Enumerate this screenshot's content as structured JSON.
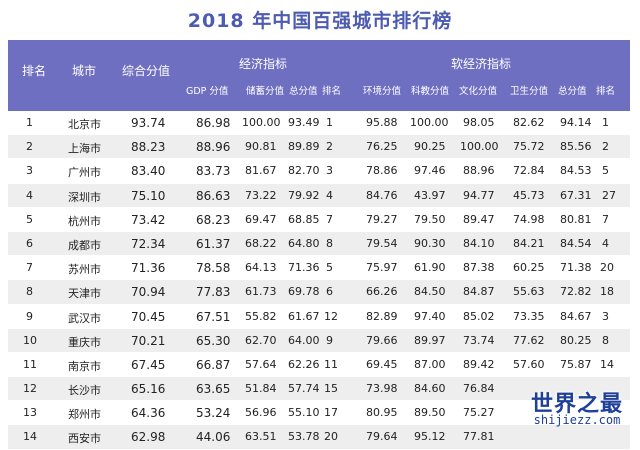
{
  "title": "2018 年中国百强城市排行榜",
  "header": {
    "rank": "排名",
    "city": "城市",
    "total": "综合分值",
    "economy_group": "经济指标",
    "non_economy_group": "软经济指标",
    "gdp": "GDP 分值",
    "savings": "储蓄分值",
    "econ_total": "总分值",
    "econ_rank": "排名",
    "environment": "环境分值",
    "science": "科教分值",
    "culture": "文化分值",
    "health": "卫生分值",
    "soft_total": "总分值",
    "soft_rank": "排名"
  },
  "rows": [
    {
      "rank": "1",
      "city": "北京市",
      "total": "93.74",
      "gdp": "86.98",
      "savings": "100.00",
      "econ_total": "93.49",
      "econ_rank": "1",
      "environment": "95.88",
      "science": "100.00",
      "culture": "98.05",
      "health": "82.62",
      "soft_total": "94.14",
      "soft_rank": "1"
    },
    {
      "rank": "2",
      "city": "上海市",
      "total": "88.23",
      "gdp": "88.96",
      "savings": "90.81",
      "econ_total": "89.89",
      "econ_rank": "2",
      "environment": "76.25",
      "science": "90.25",
      "culture": "100.00",
      "health": "75.72",
      "soft_total": "85.56",
      "soft_rank": "2"
    },
    {
      "rank": "3",
      "city": "广州市",
      "total": "83.40",
      "gdp": "83.73",
      "savings": "81.67",
      "econ_total": "82.70",
      "econ_rank": "3",
      "environment": "78.86",
      "science": "97.46",
      "culture": "88.96",
      "health": "72.84",
      "soft_total": "84.53",
      "soft_rank": "5"
    },
    {
      "rank": "4",
      "city": "深圳市",
      "total": "75.10",
      "gdp": "86.63",
      "savings": "73.22",
      "econ_total": "79.92",
      "econ_rank": "4",
      "environment": "84.76",
      "science": "43.97",
      "culture": "94.77",
      "health": "45.73",
      "soft_total": "67.31",
      "soft_rank": "27"
    },
    {
      "rank": "5",
      "city": "杭州市",
      "total": "73.42",
      "gdp": "68.23",
      "savings": "69.47",
      "econ_total": "68.85",
      "econ_rank": "7",
      "environment": "79.27",
      "science": "79.50",
      "culture": "89.47",
      "health": "74.98",
      "soft_total": "80.81",
      "soft_rank": "7"
    },
    {
      "rank": "6",
      "city": "成都市",
      "total": "72.34",
      "gdp": "61.37",
      "savings": "68.22",
      "econ_total": "64.80",
      "econ_rank": "8",
      "environment": "79.54",
      "science": "90.30",
      "culture": "84.10",
      "health": "84.21",
      "soft_total": "84.54",
      "soft_rank": "4"
    },
    {
      "rank": "7",
      "city": "苏州市",
      "total": "71.36",
      "gdp": "78.58",
      "savings": "64.13",
      "econ_total": "71.36",
      "econ_rank": "5",
      "environment": "75.97",
      "science": "61.90",
      "culture": "87.38",
      "health": "60.25",
      "soft_total": "71.38",
      "soft_rank": "20"
    },
    {
      "rank": "8",
      "city": "天津市",
      "total": "70.94",
      "gdp": "77.83",
      "savings": "61.73",
      "econ_total": "69.78",
      "econ_rank": "6",
      "environment": "66.26",
      "science": "84.50",
      "culture": "84.87",
      "health": "55.63",
      "soft_total": "72.82",
      "soft_rank": "18"
    },
    {
      "rank": "9",
      "city": "武汉市",
      "total": "70.45",
      "gdp": "67.51",
      "savings": "55.82",
      "econ_total": "61.67",
      "econ_rank": "12",
      "environment": "82.89",
      "science": "97.40",
      "culture": "85.02",
      "health": "73.35",
      "soft_total": "84.67",
      "soft_rank": "3"
    },
    {
      "rank": "10",
      "city": "重庆市",
      "total": "70.21",
      "gdp": "65.30",
      "savings": "62.70",
      "econ_total": "64.00",
      "econ_rank": "9",
      "environment": "79.66",
      "science": "89.97",
      "culture": "73.74",
      "health": "77.62",
      "soft_total": "80.25",
      "soft_rank": "8"
    },
    {
      "rank": "11",
      "city": "南京市",
      "total": "67.45",
      "gdp": "66.87",
      "savings": "57.64",
      "econ_total": "62.26",
      "econ_rank": "11",
      "environment": "69.45",
      "science": "87.00",
      "culture": "89.42",
      "health": "57.60",
      "soft_total": "75.87",
      "soft_rank": "14"
    },
    {
      "rank": "12",
      "city": "长沙市",
      "total": "65.16",
      "gdp": "63.65",
      "savings": "51.84",
      "econ_total": "57.74",
      "econ_rank": "15",
      "environment": "73.98",
      "science": "84.60",
      "culture": "76.84",
      "health": "",
      "soft_total": "",
      "soft_rank": ""
    },
    {
      "rank": "13",
      "city": "郑州市",
      "total": "64.36",
      "gdp": "53.24",
      "savings": "56.96",
      "econ_total": "55.10",
      "econ_rank": "17",
      "environment": "80.95",
      "science": "89.50",
      "culture": "75.27",
      "health": "",
      "soft_total": "",
      "soft_rank": ""
    },
    {
      "rank": "14",
      "city": "西安市",
      "total": "62.98",
      "gdp": "44.06",
      "savings": "63.51",
      "econ_total": "53.78",
      "econ_rank": "20",
      "environment": "79.64",
      "science": "95.12",
      "culture": "77.81",
      "health": "",
      "soft_total": "",
      "soft_rank": ""
    }
  ],
  "watermark": {
    "brand": "世界之最",
    "domain": "shijiezz.com"
  }
}
